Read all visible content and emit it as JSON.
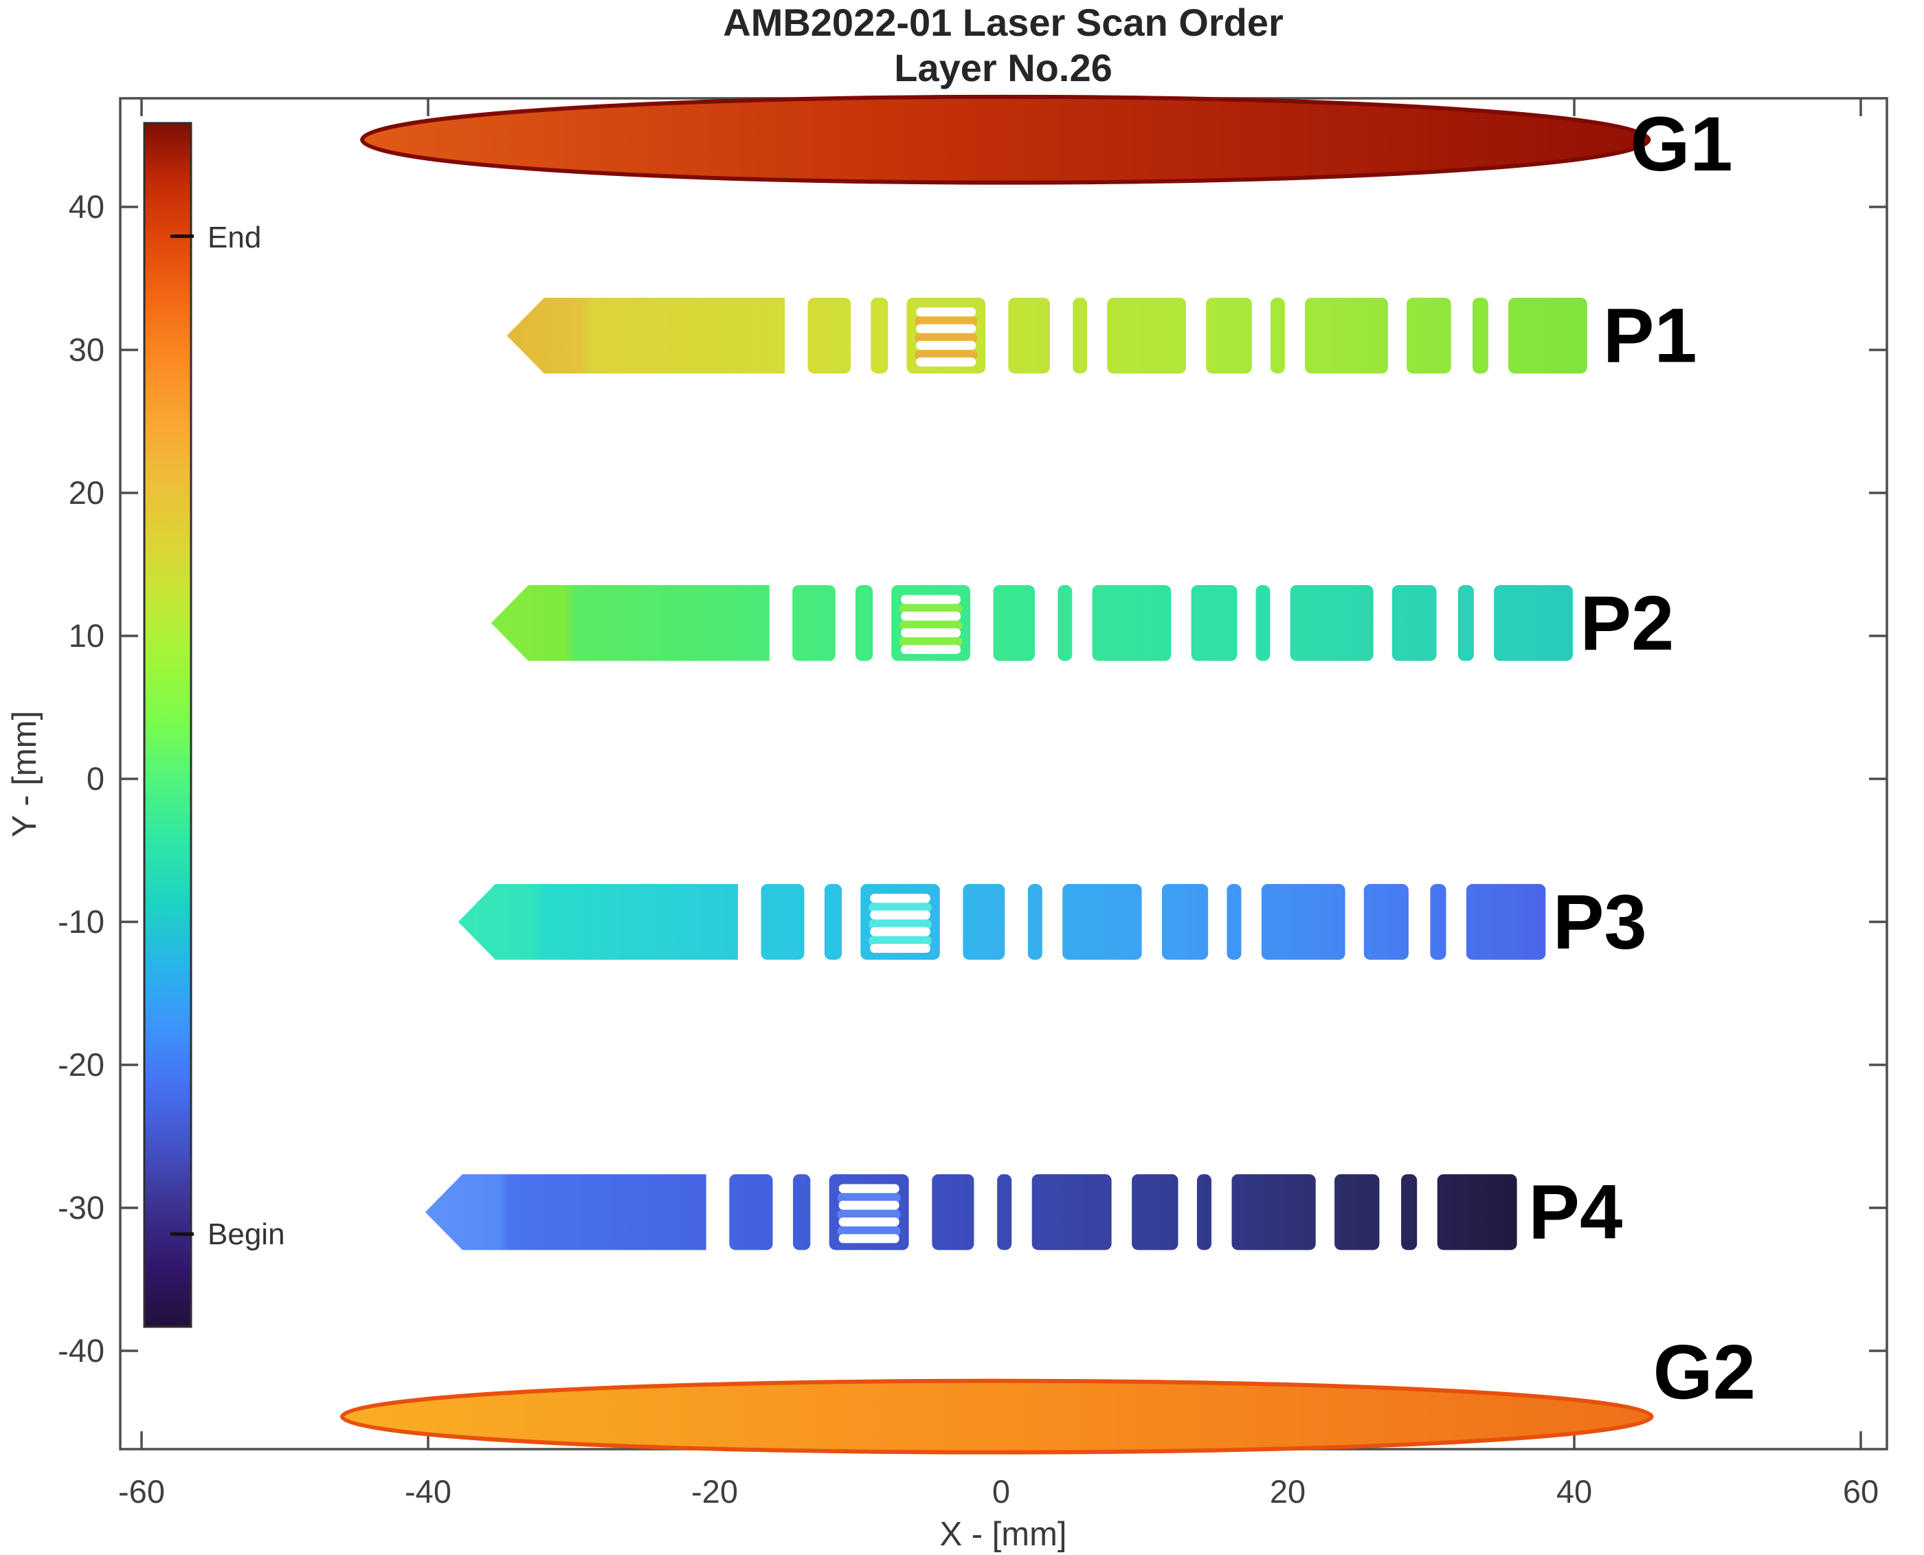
{
  "title": {
    "line1": "AMB2022-01 Laser Scan Order",
    "line2": "Layer No.26"
  },
  "chart_data": {
    "type": "heatmap",
    "description": "Spatial map of laser scan order for one build layer; color encodes scan sequence from Begin (dark purple) to End (dark red) on a turbo colormap.",
    "xlabel": "X - [mm]",
    "ylabel": "Y - [mm]",
    "xlim": [
      -61.5,
      61.8
    ],
    "ylim": [
      -46.9,
      47.6
    ],
    "xticks": [
      -60,
      -40,
      -20,
      0,
      20,
      40,
      60
    ],
    "yticks": [
      -40,
      -30,
      -20,
      -10,
      0,
      10,
      20,
      30,
      40
    ],
    "grid": false,
    "colorbar": {
      "label_end": "End",
      "label_begin": "Begin",
      "end_frac": 0.906,
      "begin_frac": 0.077,
      "stops": [
        [
          0.0,
          "#23103c"
        ],
        [
          0.05,
          "#32176c"
        ],
        [
          0.1,
          "#3d3290"
        ],
        [
          0.15,
          "#4453c7"
        ],
        [
          0.2,
          "#4671f2"
        ],
        [
          0.25,
          "#3d94fc"
        ],
        [
          0.3,
          "#28b4e9"
        ],
        [
          0.35,
          "#1dd2c3"
        ],
        [
          0.4,
          "#2ce5a7"
        ],
        [
          0.45,
          "#4ef37f"
        ],
        [
          0.5,
          "#78fb4f"
        ],
        [
          0.55,
          "#9df63a"
        ],
        [
          0.6,
          "#c0e937"
        ],
        [
          0.65,
          "#ddd435"
        ],
        [
          0.7,
          "#edbf39"
        ],
        [
          0.75,
          "#f8a733"
        ],
        [
          0.8,
          "#fb8b24"
        ],
        [
          0.85,
          "#f36b15"
        ],
        [
          0.9,
          "#e1490b"
        ],
        [
          0.95,
          "#c42c06"
        ],
        [
          1.0,
          "#7e0d05"
        ]
      ]
    },
    "ellipses": [
      {
        "label": "G1",
        "scan_phase": "last (End)",
        "cx": 0.3,
        "cy": 44.7,
        "rx": 44.9,
        "ry": 3.0,
        "stroke": "#7f0a04",
        "stops": [
          [
            0,
            "#e05a16"
          ],
          [
            0.45,
            "#c33009"
          ],
          [
            1,
            "#941005"
          ]
        ],
        "label_x": 43.9,
        "label_y": 44.4
      },
      {
        "label": "G2",
        "scan_phase": "after P1, before G1",
        "cx": -0.3,
        "cy": -44.6,
        "rx": 45.7,
        "ry": 2.5,
        "stroke": "#e8500d",
        "stops": [
          [
            0,
            "#f9ad25"
          ],
          [
            0.5,
            "#f78f1e"
          ],
          [
            1,
            "#ef7019"
          ]
        ],
        "label_x": 45.5,
        "label_y": -41.5
      }
    ],
    "bars": [
      {
        "label": "P1",
        "scan_direction": "right to left",
        "x_start": -34.5,
        "length": 75.4,
        "y_center": 31.0,
        "height": 5.3,
        "stops": [
          [
            0,
            "#e4b938"
          ],
          [
            0.068,
            "#e2c43a"
          ],
          [
            0.078,
            "#dcd43a"
          ],
          [
            0.35,
            "#cfe036"
          ],
          [
            0.7,
            "#a8e93a"
          ],
          [
            1,
            "#7fe43c"
          ]
        ],
        "hatch_accent": "#e9b23c",
        "label_x": 42.0,
        "label_y": 31.0
      },
      {
        "label": "P2",
        "scan_direction": "right to left",
        "x_start": -35.6,
        "length": 75.5,
        "y_center": 10.9,
        "height": 5.3,
        "stops": [
          [
            0,
            "#85ec3e"
          ],
          [
            0.068,
            "#7dea3e"
          ],
          [
            0.078,
            "#5bea62"
          ],
          [
            0.4,
            "#3ceb89"
          ],
          [
            0.7,
            "#2fdfa7"
          ],
          [
            1,
            "#29cbbd"
          ]
        ],
        "hatch_accent": "#86ef47",
        "label_x": 40.4,
        "label_y": 10.9
      },
      {
        "label": "P3",
        "scan_direction": "right to left",
        "x_start": -37.9,
        "length": 75.9,
        "y_center": -10.0,
        "height": 5.3,
        "stops": [
          [
            0,
            "#38e8b5"
          ],
          [
            0.068,
            "#30e3bd"
          ],
          [
            0.078,
            "#28dccb"
          ],
          [
            0.35,
            "#2cc3e6"
          ],
          [
            0.65,
            "#3da0f5"
          ],
          [
            0.85,
            "#4680f2"
          ],
          [
            1,
            "#4b66e8"
          ]
        ],
        "hatch_accent": "#52e8e0",
        "label_x": 38.5,
        "label_y": -10.0
      },
      {
        "label": "P4",
        "scan_direction": "right to left (scan begins here)",
        "x_start": -40.2,
        "length": 76.2,
        "y_center": -30.3,
        "height": 5.3,
        "stops": [
          [
            0,
            "#6093f9"
          ],
          [
            0.068,
            "#5589f6"
          ],
          [
            0.078,
            "#4a74f0"
          ],
          [
            0.3,
            "#4462e0"
          ],
          [
            0.5,
            "#3c4cba"
          ],
          [
            0.7,
            "#343c92"
          ],
          [
            0.85,
            "#2c2c66"
          ],
          [
            1,
            "#211940"
          ]
        ],
        "hatch_accent": "#5b80f5",
        "label_x": 36.8,
        "label_y": -30.3
      }
    ],
    "segment_pattern": [
      {
        "type": "arrow",
        "from": 0.0,
        "to": 19.4
      },
      {
        "type": "rect",
        "from": 21.0,
        "to": 24.0
      },
      {
        "type": "rect",
        "from": 25.4,
        "to": 26.6
      },
      {
        "type": "hatch",
        "from": 27.9,
        "to": 33.4
      },
      {
        "type": "rect",
        "from": 35.0,
        "to": 37.9
      },
      {
        "type": "rect",
        "from": 39.5,
        "to": 40.5
      },
      {
        "type": "rect",
        "from": 41.9,
        "to": 47.4
      },
      {
        "type": "rect",
        "from": 48.8,
        "to": 52.0
      },
      {
        "type": "rect",
        "from": 53.3,
        "to": 54.3
      },
      {
        "type": "rect",
        "from": 55.7,
        "to": 61.5
      },
      {
        "type": "rect",
        "from": 62.8,
        "to": 65.9
      },
      {
        "type": "rect",
        "from": 67.4,
        "to": 68.5
      },
      {
        "type": "rect",
        "from": 69.9,
        "to": 75.4
      }
    ]
  }
}
